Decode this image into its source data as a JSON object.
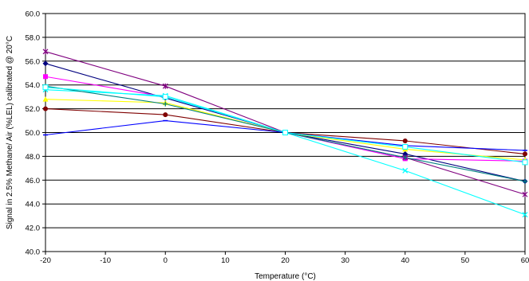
{
  "chart_data": {
    "type": "line",
    "title": "",
    "xlabel": "Temperature (°C)",
    "ylabel": "Signal in 2.5% Methane/ Air (%LEL) calibrated @ 20°C",
    "xlim": [
      -20,
      60
    ],
    "ylim": [
      40,
      60
    ],
    "x_ticks": [
      -20,
      -10,
      0,
      10,
      20,
      30,
      40,
      50,
      60
    ],
    "y_ticks": [
      40,
      42,
      44,
      46,
      48,
      50,
      52,
      54,
      56,
      58,
      60
    ],
    "x_tick_labels": [
      "-20",
      "-10",
      "0",
      "10",
      "20",
      "30",
      "40",
      "50",
      "60"
    ],
    "y_tick_labels": [
      "40.0",
      "42.0",
      "44.0",
      "46.0",
      "48.0",
      "50.0",
      "52.0",
      "54.0",
      "56.0",
      "58.0",
      "60.0"
    ],
    "grid": "horizontal",
    "legend": "none",
    "x": [
      -20,
      0,
      20,
      40,
      60
    ],
    "series": [
      {
        "color": "#00007f",
        "marker": "diamond",
        "values": [
          55.8,
          52.9,
          50.0,
          48.2,
          45.9
        ]
      },
      {
        "color": "#ff00ff",
        "marker": "square",
        "values": [
          54.7,
          53.0,
          50.0,
          47.8,
          47.6
        ]
      },
      {
        "color": "#ffff00",
        "marker": "triangle",
        "values": [
          52.8,
          52.5,
          50.0,
          48.6,
          47.7
        ]
      },
      {
        "color": "#00ffff",
        "marker": "x",
        "values": [
          53.6,
          53.1,
          50.0,
          46.8,
          43.1
        ]
      },
      {
        "color": "#7f007f",
        "marker": "star",
        "values": [
          56.8,
          53.9,
          50.0,
          47.9,
          44.8
        ]
      },
      {
        "color": "#7f0000",
        "marker": "circle",
        "values": [
          52.0,
          51.5,
          50.0,
          49.3,
          48.2
        ]
      },
      {
        "color": "#008080",
        "marker": "plus",
        "values": [
          53.9,
          52.4,
          50.0,
          47.9,
          45.9
        ]
      },
      {
        "color": "#0000ff",
        "marker": "dash",
        "values": [
          49.8,
          51.0,
          50.0,
          48.9,
          48.5
        ]
      },
      {
        "color": "#00ffff",
        "marker": "square-open",
        "values": [
          53.8,
          53.0,
          50.0,
          48.8,
          47.5
        ]
      }
    ]
  }
}
